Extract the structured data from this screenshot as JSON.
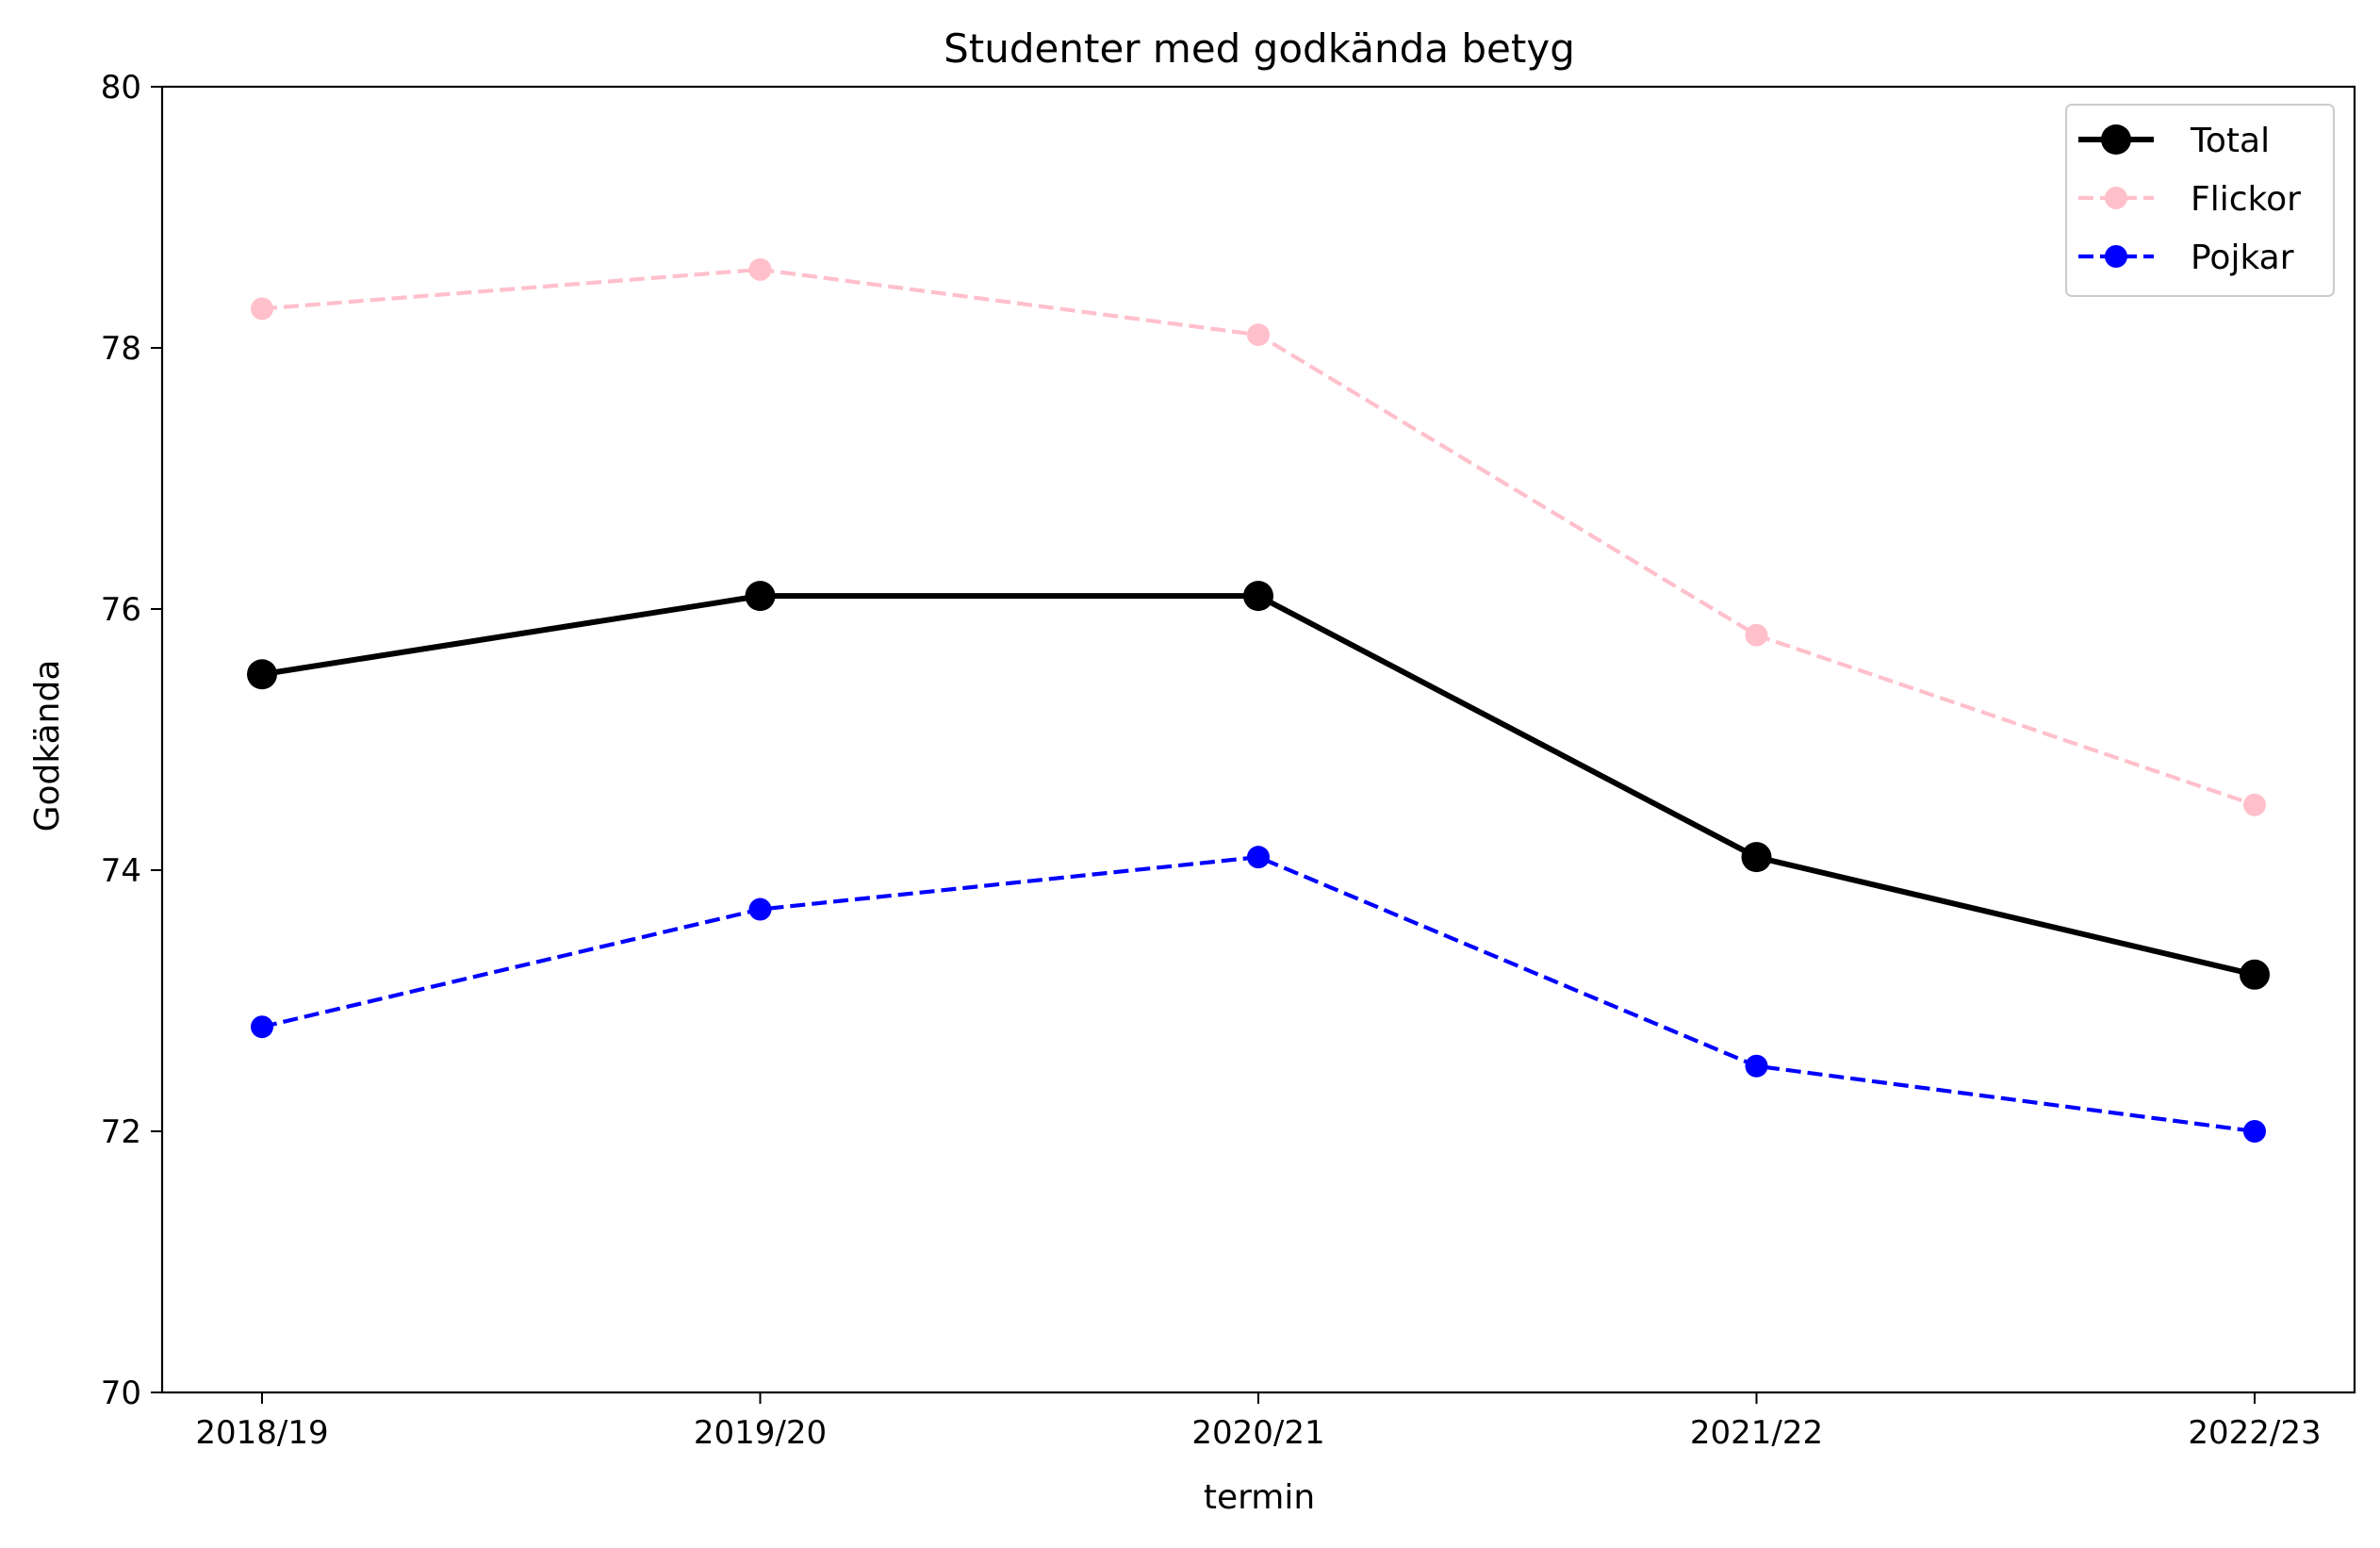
{
  "chart_data": {
    "type": "line",
    "title": "Studenter med godkända betyg",
    "xlabel": "termin",
    "ylabel": "Godkända",
    "categories": [
      "2018/19",
      "2019/20",
      "2020/21",
      "2021/22",
      "2022/23"
    ],
    "ylim": [
      70,
      80
    ],
    "yticks": [
      70,
      72,
      74,
      76,
      78,
      80
    ],
    "grid": false,
    "legend_position": "top-right",
    "series": [
      {
        "name": "Total",
        "color": "#000000",
        "line_style": "solid",
        "values": [
          75.5,
          76.1,
          76.1,
          74.1,
          73.2
        ]
      },
      {
        "name": "Flickor",
        "color": "#ffc0cb",
        "line_style": "dashed",
        "values": [
          78.3,
          78.6,
          78.1,
          75.8,
          74.5
        ]
      },
      {
        "name": "Pojkar",
        "color": "#0000ff",
        "line_style": "dashed",
        "values": [
          72.8,
          73.7,
          74.1,
          72.5,
          72.0
        ]
      }
    ]
  }
}
